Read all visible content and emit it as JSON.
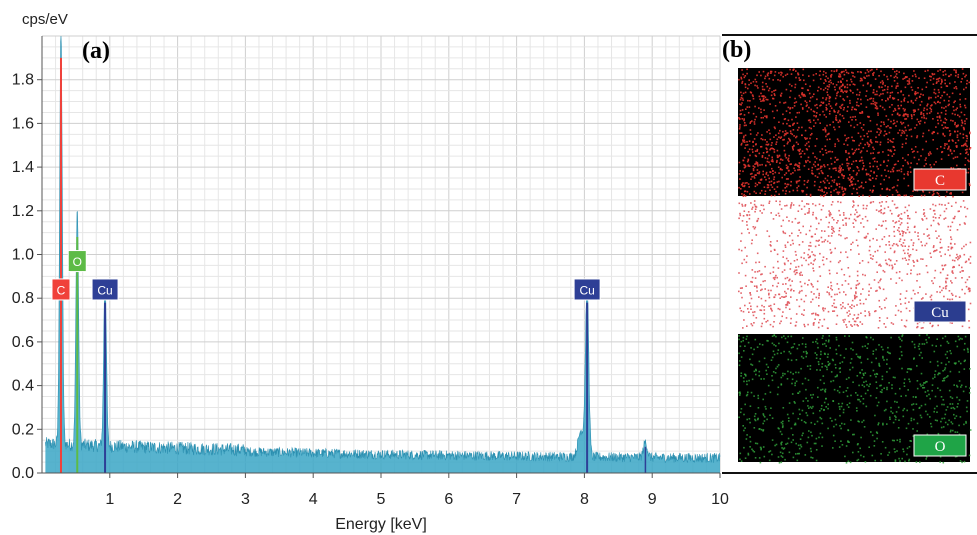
{
  "chart_data": [
    {
      "type": "line",
      "panel_label": "(a)",
      "ylabel": "cps/eV",
      "xlabel": "Energy [keV]",
      "xlim": [
        0,
        10
      ],
      "ylim": [
        0,
        2.0
      ],
      "xticks": [
        1,
        2,
        3,
        4,
        5,
        6,
        7,
        8,
        9,
        10
      ],
      "yticks": [
        0.0,
        0.2,
        0.4,
        0.6,
        0.8,
        1.0,
        1.2,
        1.4,
        1.6,
        1.8
      ],
      "grid": true,
      "series_color": "#3aa6c6",
      "peaks": [
        {
          "label": "C",
          "energy": 0.28,
          "height": 1.9,
          "label_y": 0.84,
          "color": "#f0413a"
        },
        {
          "label": "O",
          "energy": 0.52,
          "height": 1.08,
          "label_y": 0.97,
          "color": "#5dbb46"
        },
        {
          "label": "Cu",
          "energy": 0.93,
          "height": 0.78,
          "label_y": 0.84,
          "color": "#2e3f96"
        },
        {
          "label": "Cu",
          "energy": 8.04,
          "height": 0.78,
          "label_y": 0.84,
          "color": "#2e3f96"
        }
      ],
      "minor_lines": [
        {
          "energy": 8.9,
          "height": 0.12,
          "color": "#2e3f96"
        }
      ]
    },
    {
      "type": "other",
      "panel_label": "(b)",
      "maps": [
        {
          "label": "C",
          "background": "#000000",
          "dot_color": "#e2332c",
          "label_color": "#e8382f"
        },
        {
          "label": "Cu",
          "background": "#ffffff",
          "dot_color": "#e0555c",
          "label_color": "#2b3d8f"
        },
        {
          "label": "O",
          "background": "#000000",
          "dot_color": "#33a83d",
          "label_color": "#1fa447"
        }
      ]
    }
  ]
}
